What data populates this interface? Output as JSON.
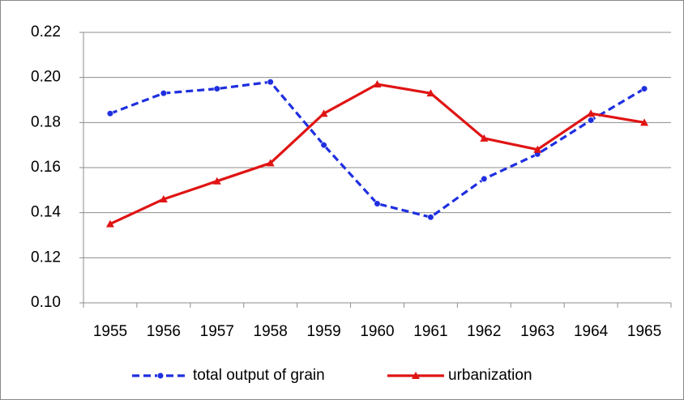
{
  "chart_data": {
    "type": "line",
    "categories": [
      "1955",
      "1956",
      "1957",
      "1958",
      "1959",
      "1960",
      "1961",
      "1962",
      "1963",
      "1964",
      "1965"
    ],
    "series": [
      {
        "name": "total output of grain",
        "color": "#1f2fe0",
        "dashed": true,
        "marker": "circle",
        "values": [
          0.184,
          0.193,
          0.195,
          0.198,
          0.17,
          0.144,
          0.138,
          0.155,
          0.166,
          0.181,
          0.195
        ]
      },
      {
        "name": "urbanization",
        "color": "#e01414",
        "dashed": false,
        "marker": "triangle",
        "values": [
          0.135,
          0.146,
          0.154,
          0.162,
          0.184,
          0.197,
          0.193,
          0.173,
          0.168,
          0.184,
          0.18
        ]
      }
    ],
    "ylim": [
      0.1,
      0.22
    ],
    "yticks": [
      {
        "value": 0.1,
        "label": "0.10"
      },
      0.12,
      0.14,
      0.16,
      0.18,
      {
        "value": 0.2,
        "label": "0.20"
      },
      0.22
    ],
    "grid": true,
    "legend": "bottom"
  }
}
